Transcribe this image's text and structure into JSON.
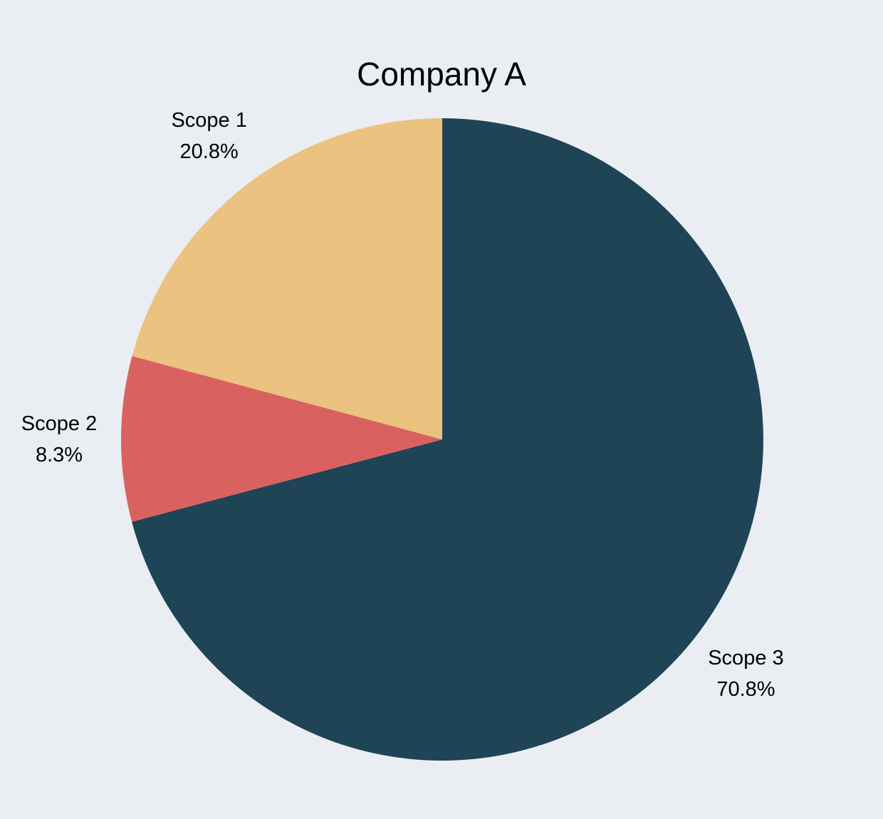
{
  "chart_data": {
    "type": "pie",
    "title": "Company A",
    "start_angle_deg": 0,
    "direction": "clockwise",
    "slices": [
      {
        "label": "Scope 3",
        "value": 70.8,
        "value_text": "70.8%",
        "color": "#1f4456"
      },
      {
        "label": "Scope 2",
        "value": 8.3,
        "value_text": "8.3%",
        "color": "#d96260"
      },
      {
        "label": "Scope 1",
        "value": 20.8,
        "value_text": "20.8%",
        "color": "#ebc27f"
      }
    ],
    "legend": "none",
    "background": "#eaeef3"
  }
}
